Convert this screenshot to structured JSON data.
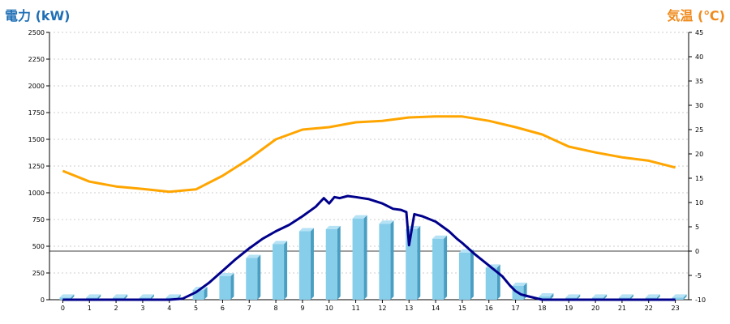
{
  "chart_data": {
    "type": "bar",
    "ylabel_left": "電力 (kW)",
    "ylabel_right": "気温 (℃)",
    "categories": [
      "0",
      "1",
      "2",
      "3",
      "4",
      "5",
      "6",
      "7",
      "8",
      "9",
      "10",
      "11",
      "12",
      "13",
      "14",
      "15",
      "16",
      "17",
      "18",
      "19",
      "20",
      "21",
      "22",
      "23"
    ],
    "ylim_left": [
      0,
      2500
    ],
    "yticks_left": [
      0,
      250,
      500,
      750,
      1000,
      1250,
      1500,
      1750,
      2000,
      2250,
      2500
    ],
    "ylim_right": [
      -10,
      45
    ],
    "yticks_right": [
      -10,
      -5,
      0,
      5,
      10,
      15,
      20,
      25,
      30,
      35,
      40,
      45
    ],
    "grid": true,
    "series": [
      {
        "type": "bar",
        "axis": "left",
        "color": "#87ceeb",
        "values": [
          20,
          20,
          20,
          20,
          20,
          90,
          220,
          390,
          520,
          640,
          660,
          760,
          710,
          660,
          570,
          440,
          300,
          130,
          30,
          20,
          20,
          20,
          20,
          20
        ]
      },
      {
        "type": "line",
        "axis": "left",
        "color": "#00008b",
        "x": [
          0,
          1,
          2,
          3,
          4,
          4.5,
          5,
          5.5,
          6,
          6.5,
          7,
          7.5,
          8,
          8.5,
          9,
          9.5,
          9.8,
          10,
          10.2,
          10.4,
          10.7,
          11,
          11.5,
          12,
          12.4,
          12.7,
          12.9,
          13,
          13.2,
          13.5,
          14,
          14.5,
          14.8,
          15,
          15.5,
          16,
          16.5,
          16.8,
          17,
          17.2,
          17.5,
          18,
          18.5,
          19,
          20,
          21,
          22,
          23
        ],
        "values": [
          0,
          0,
          0,
          0,
          0,
          10,
          70,
          160,
          270,
          380,
          480,
          570,
          640,
          700,
          780,
          870,
          950,
          900,
          960,
          950,
          970,
          960,
          940,
          900,
          850,
          840,
          820,
          510,
          800,
          780,
          730,
          640,
          570,
          530,
          420,
          320,
          220,
          130,
          80,
          50,
          30,
          0,
          0,
          0,
          0,
          0,
          0,
          0
        ]
      },
      {
        "type": "line",
        "axis": "right",
        "color": "#ffa500",
        "x": [
          0,
          1,
          2,
          3,
          4,
          5,
          6,
          7,
          8,
          9,
          10,
          11,
          12,
          13,
          14,
          15,
          16,
          17,
          18,
          19,
          20,
          21,
          22,
          23
        ],
        "values": [
          16.5,
          14.3,
          13.3,
          12.8,
          12.2,
          12.7,
          15.5,
          19,
          23,
          25,
          25.5,
          26.5,
          26.8,
          27.5,
          27.7,
          27.7,
          26.8,
          25.5,
          24,
          21.5,
          20.3,
          19.3,
          18.6,
          17.2
        ]
      }
    ]
  }
}
